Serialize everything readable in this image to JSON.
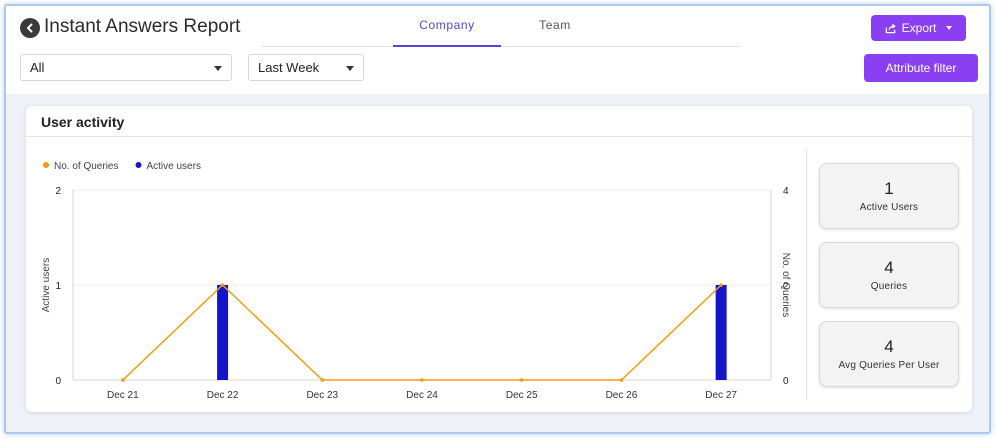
{
  "header": {
    "title": "Instant Answers Report",
    "tabs": [
      {
        "label": "Company",
        "active": true
      },
      {
        "label": "Team",
        "active": false
      }
    ],
    "export_label": "Export"
  },
  "filters": {
    "scope_value": "All",
    "range_value": "Last Week",
    "attribute_filter_label": "Attribute filter"
  },
  "card": {
    "title": "User activity"
  },
  "chart_data": {
    "type": "bar",
    "categories": [
      "Dec 21",
      "Dec 22",
      "Dec 23",
      "Dec 24",
      "Dec 25",
      "Dec 26",
      "Dec 27"
    ],
    "series": [
      {
        "name": "No. of Queries",
        "type": "line",
        "axis": "right",
        "color": "#f39c12",
        "values": [
          0,
          2,
          0,
          0,
          0,
          0,
          2
        ]
      },
      {
        "name": "Active users",
        "type": "bar",
        "axis": "left",
        "color": "#1414cc",
        "values": [
          0,
          1,
          0,
          0,
          0,
          0,
          1
        ]
      }
    ],
    "ylabel_left": "Active users",
    "ylabel_right": "No. of Queries",
    "ylim_left": [
      0,
      2
    ],
    "ylim_right": [
      0,
      4
    ],
    "yticks_left": [
      "0",
      "1",
      "2"
    ],
    "yticks_right": [
      "0",
      "2",
      "4"
    ],
    "grid": true,
    "legend_position": "top-left"
  },
  "stats": [
    {
      "value": "1",
      "label": "Active Users"
    },
    {
      "value": "4",
      "label": "Queries"
    },
    {
      "value": "4",
      "label": "Avg Queries Per User"
    }
  ],
  "colors": {
    "accent": "#8a3ff2",
    "tab_active": "#5146d8"
  }
}
